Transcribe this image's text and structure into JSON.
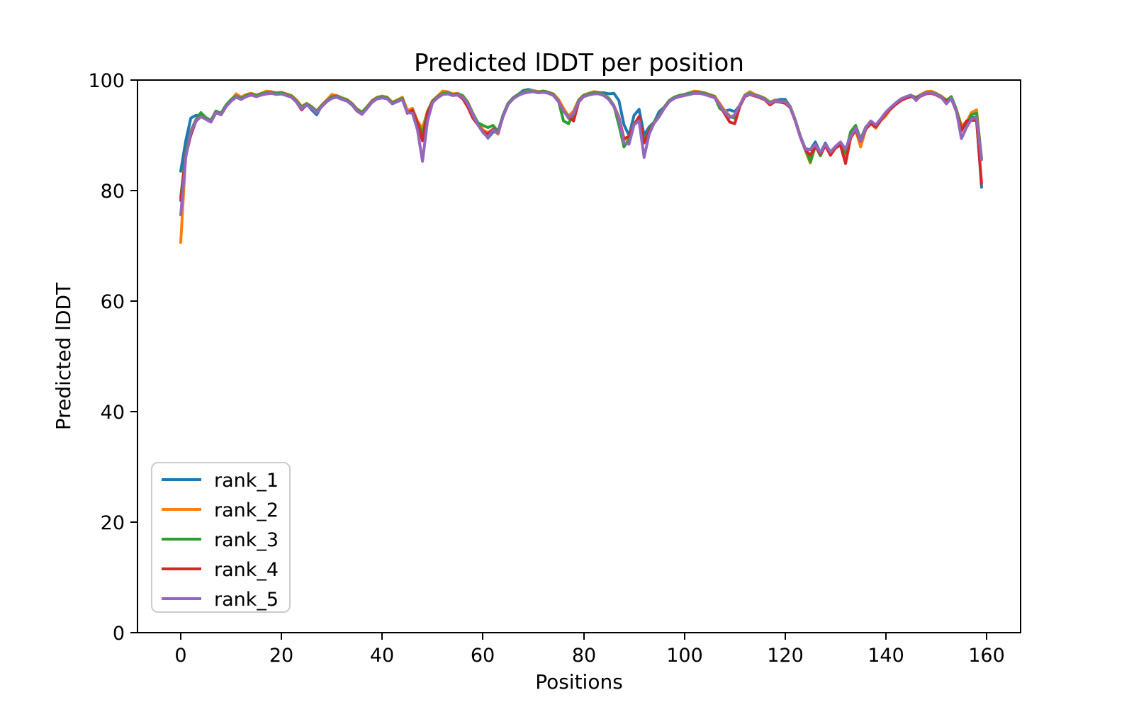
{
  "figure": {
    "background": "#ffffff",
    "axes_edge_color": "#000000",
    "legend_border_color": "#cccccc"
  },
  "chart_data": {
    "type": "line",
    "title": "Predicted lDDT per position",
    "xlabel": "Positions",
    "ylabel": "Predicted lDDT",
    "xlim": [
      -8.7,
      166.8
    ],
    "ylim": [
      0,
      100
    ],
    "xticks": [
      0,
      20,
      40,
      60,
      80,
      100,
      120,
      140,
      160
    ],
    "yticks": [
      0,
      20,
      40,
      60,
      80,
      100
    ],
    "grid": false,
    "legend_position": "lower left",
    "x_start": 0,
    "x_step": 1,
    "n_points": 160,
    "series": [
      {
        "name": "rank_1",
        "color": "#1f77b4",
        "values": [
          83.5,
          89.0,
          93.1,
          93.6,
          93.6,
          93.1,
          92.6,
          94.3,
          93.9,
          95.4,
          96.4,
          97.1,
          96.7,
          97.2,
          97.5,
          97.2,
          97.5,
          97.7,
          97.8,
          97.6,
          97.7,
          97.4,
          97.1,
          96.2,
          95.0,
          95.7,
          94.6,
          93.7,
          95.4,
          96.3,
          96.9,
          97.1,
          96.7,
          96.4,
          95.7,
          94.7,
          94.1,
          95.1,
          96.2,
          96.8,
          97.0,
          96.8,
          95.9,
          96.3,
          96.7,
          94.2,
          94.7,
          92.4,
          91.3,
          94.2,
          96.2,
          97.0,
          97.6,
          97.7,
          97.4,
          97.5,
          97.1,
          95.9,
          93.9,
          92.1,
          90.9,
          89.5,
          90.6,
          90.6,
          93.6,
          95.8,
          96.8,
          97.4,
          98.1,
          98.3,
          98.1,
          97.9,
          98.0,
          97.8,
          97.4,
          96.3,
          94.6,
          93.1,
          94.1,
          96.3,
          97.2,
          97.5,
          97.7,
          97.7,
          97.7,
          97.5,
          97.6,
          96.3,
          91.9,
          90.0,
          93.6,
          94.7,
          90.0,
          91.5,
          92.4,
          94.3,
          95.1,
          96.3,
          96.9,
          97.2,
          97.4,
          97.6,
          97.8,
          97.8,
          97.6,
          97.3,
          97.0,
          95.7,
          94.4,
          94.6,
          94.3,
          95.4,
          97.2,
          97.6,
          97.3,
          97.0,
          96.6,
          95.9,
          96.3,
          96.5,
          96.5,
          95.2,
          92.8,
          89.9,
          87.6,
          87.4,
          88.8,
          86.8,
          88.6,
          86.9,
          87.9,
          88.4,
          87.3,
          89.7,
          91.2,
          88.9,
          91.3,
          92.3,
          91.8,
          92.9,
          94.1,
          95.0,
          95.8,
          96.5,
          96.9,
          97.2,
          96.8,
          97.3,
          97.7,
          97.8,
          97.5,
          97.0,
          96.3,
          96.8,
          94.5,
          91.2,
          91.9,
          93.2,
          93.2,
          80.6
        ]
      },
      {
        "name": "rank_2",
        "color": "#ff7f0e",
        "values": [
          70.6,
          86.5,
          90.3,
          92.8,
          93.6,
          93.1,
          92.6,
          94.3,
          93.9,
          95.4,
          96.4,
          97.5,
          96.9,
          97.4,
          97.6,
          97.3,
          97.6,
          98.0,
          97.9,
          97.7,
          97.8,
          97.5,
          97.2,
          96.4,
          95.2,
          95.8,
          95.2,
          94.4,
          95.5,
          96.4,
          97.4,
          97.2,
          96.8,
          96.5,
          95.8,
          94.8,
          94.2,
          95.2,
          96.3,
          96.9,
          97.1,
          96.9,
          96.0,
          96.4,
          96.9,
          94.5,
          94.9,
          92.6,
          91.2,
          94.4,
          96.3,
          97.1,
          98.0,
          97.9,
          97.5,
          97.6,
          97.2,
          96.0,
          94.0,
          92.2,
          91.0,
          90.5,
          91.1,
          90.2,
          93.6,
          95.8,
          96.8,
          97.4,
          97.8,
          98.0,
          98.1,
          97.9,
          98.0,
          97.8,
          97.5,
          96.5,
          94.9,
          93.5,
          94.4,
          96.4,
          97.3,
          97.6,
          97.9,
          97.8,
          97.4,
          96.7,
          95.4,
          93.4,
          89.1,
          89.8,
          92.1,
          92.9,
          88.8,
          90.9,
          92.4,
          93.6,
          95.1,
          96.3,
          96.9,
          97.2,
          97.4,
          97.7,
          98.0,
          97.9,
          97.7,
          97.4,
          97.1,
          95.8,
          94.5,
          93.5,
          93.2,
          95.5,
          97.3,
          97.9,
          97.4,
          97.1,
          96.7,
          96.0,
          96.4,
          96.2,
          96.2,
          95.2,
          92.8,
          89.9,
          87.3,
          85.0,
          88.0,
          86.9,
          88.1,
          87.0,
          87.9,
          88.3,
          86.5,
          89.5,
          91.0,
          87.9,
          91.1,
          92.2,
          91.3,
          92.7,
          93.5,
          94.9,
          95.7,
          96.4,
          96.9,
          97.2,
          96.9,
          97.4,
          97.9,
          98.0,
          97.6,
          97.1,
          96.4,
          96.8,
          94.6,
          91.8,
          92.4,
          94.1,
          94.6,
          85.9
        ]
      },
      {
        "name": "rank_3",
        "color": "#2ca02c",
        "values": [
          78.8,
          86.8,
          90.8,
          92.8,
          94.1,
          93.2,
          92.7,
          94.4,
          94.0,
          95.5,
          96.5,
          97.1,
          96.7,
          97.2,
          97.5,
          97.2,
          97.5,
          97.7,
          97.8,
          97.6,
          97.7,
          97.4,
          97.1,
          96.2,
          95.1,
          95.7,
          95.1,
          94.4,
          95.4,
          96.3,
          97.0,
          97.1,
          96.7,
          96.4,
          95.7,
          94.7,
          94.1,
          95.1,
          96.2,
          96.8,
          97.0,
          96.8,
          95.9,
          96.3,
          96.7,
          94.0,
          94.6,
          92.3,
          90.3,
          94.2,
          96.2,
          97.0,
          97.6,
          97.7,
          97.4,
          97.5,
          97.1,
          95.9,
          93.9,
          92.3,
          91.8,
          91.4,
          91.8,
          90.7,
          93.7,
          95.8,
          96.8,
          97.4,
          97.8,
          97.9,
          98.0,
          97.8,
          98.0,
          97.8,
          97.4,
          96.2,
          92.6,
          92.1,
          94.0,
          96.3,
          97.2,
          97.5,
          97.7,
          97.7,
          97.4,
          96.7,
          95.4,
          91.9,
          87.9,
          89.3,
          92.1,
          93.0,
          88.8,
          90.9,
          92.4,
          93.6,
          95.1,
          96.3,
          96.9,
          97.2,
          97.4,
          97.6,
          97.8,
          97.8,
          97.6,
          97.3,
          97.0,
          94.9,
          94.2,
          93.4,
          93.1,
          95.4,
          97.2,
          97.6,
          97.3,
          97.0,
          96.6,
          95.9,
          96.3,
          96.2,
          96.2,
          95.2,
          92.8,
          89.9,
          87.6,
          85.2,
          88.2,
          86.3,
          88.3,
          86.9,
          87.9,
          88.4,
          86.8,
          90.6,
          91.8,
          89.3,
          91.5,
          92.3,
          91.8,
          92.9,
          94.1,
          95.0,
          95.8,
          96.5,
          96.9,
          97.2,
          96.8,
          97.3,
          97.7,
          97.8,
          97.5,
          97.0,
          96.3,
          97.0,
          94.7,
          91.3,
          92.0,
          93.7,
          94.0,
          85.8
        ]
      },
      {
        "name": "rank_4",
        "color": "#d62728",
        "values": [
          78.2,
          86.3,
          90.0,
          92.5,
          93.4,
          92.9,
          92.4,
          94.1,
          93.7,
          95.2,
          96.2,
          96.9,
          96.5,
          97.0,
          97.3,
          97.0,
          97.3,
          97.5,
          97.6,
          97.4,
          97.5,
          97.2,
          96.9,
          96.0,
          94.6,
          95.5,
          94.9,
          94.1,
          95.2,
          96.1,
          96.7,
          96.9,
          96.5,
          96.2,
          95.5,
          94.4,
          93.8,
          94.9,
          96.0,
          96.6,
          96.8,
          96.6,
          95.7,
          96.1,
          96.5,
          94.0,
          94.5,
          92.2,
          89.0,
          94.0,
          96.0,
          96.8,
          97.4,
          97.5,
          97.2,
          97.3,
          96.6,
          95.1,
          93.1,
          91.9,
          90.7,
          90.2,
          91.1,
          90.4,
          93.4,
          95.6,
          96.6,
          97.2,
          97.6,
          97.8,
          97.9,
          97.7,
          97.8,
          97.6,
          97.2,
          96.1,
          94.4,
          93.3,
          92.6,
          96.0,
          97.0,
          97.3,
          97.5,
          97.5,
          97.2,
          96.5,
          95.2,
          93.2,
          89.4,
          89.8,
          91.9,
          93.4,
          88.6,
          90.7,
          92.2,
          93.4,
          94.9,
          96.1,
          96.7,
          97.0,
          97.2,
          97.4,
          97.6,
          97.6,
          97.4,
          97.1,
          96.8,
          95.5,
          93.9,
          92.4,
          92.1,
          95.2,
          97.0,
          97.4,
          97.1,
          96.8,
          96.4,
          95.5,
          96.1,
          96.0,
          95.8,
          95.0,
          92.6,
          89.7,
          87.4,
          86.4,
          88.0,
          86.6,
          88.1,
          86.4,
          87.7,
          88.2,
          84.9,
          89.5,
          91.0,
          88.9,
          91.1,
          92.1,
          91.5,
          92.7,
          93.9,
          94.8,
          95.6,
          96.3,
          96.7,
          97.0,
          96.6,
          97.1,
          97.5,
          97.6,
          97.3,
          96.8,
          96.1,
          96.6,
          94.3,
          90.8,
          92.6,
          92.7,
          92.7,
          81.3
        ]
      },
      {
        "name": "rank_5",
        "color": "#9467bd",
        "values": [
          75.6,
          86.0,
          90.5,
          92.6,
          93.4,
          92.9,
          92.4,
          94.1,
          93.7,
          95.2,
          96.2,
          96.9,
          96.5,
          97.0,
          97.3,
          97.0,
          97.3,
          97.5,
          97.6,
          97.4,
          97.5,
          97.2,
          96.9,
          96.0,
          94.8,
          95.5,
          94.9,
          94.1,
          95.2,
          96.1,
          96.7,
          96.9,
          96.5,
          96.2,
          95.5,
          94.5,
          93.8,
          94.9,
          96.0,
          96.6,
          96.8,
          96.6,
          95.7,
          96.1,
          96.5,
          94.1,
          94.0,
          91.0,
          85.3,
          92.6,
          95.9,
          96.8,
          97.4,
          97.5,
          97.2,
          97.3,
          96.9,
          95.7,
          93.7,
          91.9,
          90.5,
          89.6,
          91.0,
          90.4,
          93.4,
          95.6,
          96.6,
          97.2,
          97.6,
          97.8,
          97.9,
          97.7,
          97.8,
          97.6,
          97.2,
          96.1,
          94.4,
          93.2,
          93.9,
          96.1,
          97.0,
          97.3,
          97.5,
          97.5,
          97.2,
          96.5,
          95.2,
          93.2,
          88.6,
          88.4,
          91.9,
          92.6,
          86.0,
          90.2,
          92.2,
          93.4,
          94.9,
          96.1,
          96.7,
          97.0,
          97.2,
          97.4,
          97.6,
          97.6,
          97.4,
          97.1,
          96.8,
          95.5,
          94.2,
          93.2,
          93.7,
          95.5,
          97.1,
          97.5,
          97.2,
          96.9,
          96.5,
          95.8,
          96.2,
          96.1,
          96.1,
          95.1,
          92.7,
          89.8,
          87.5,
          87.4,
          88.3,
          86.9,
          88.4,
          87.0,
          88.0,
          88.8,
          87.5,
          89.8,
          91.3,
          89.0,
          91.4,
          92.6,
          91.9,
          93.0,
          94.2,
          95.1,
          95.9,
          96.6,
          97.0,
          97.3,
          96.3,
          97.2,
          97.6,
          97.7,
          97.4,
          96.9,
          95.7,
          96.7,
          94.4,
          89.4,
          91.4,
          92.9,
          93.3,
          85.6
        ]
      }
    ]
  }
}
